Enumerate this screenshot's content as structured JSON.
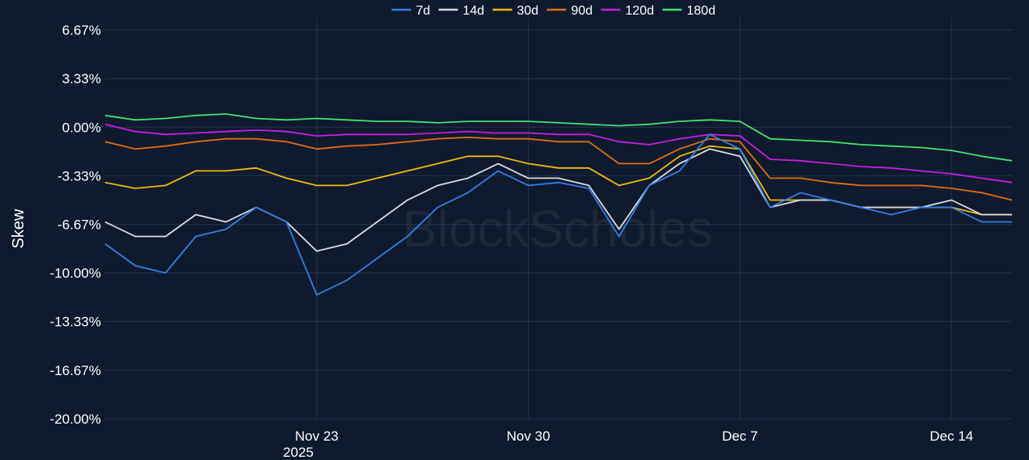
{
  "chart_data": {
    "type": "line",
    "watermark": "BlockScholes",
    "ylabel": "Skew",
    "xlabel": "",
    "year_label": "2025",
    "ylim": [
      -20.0,
      7.5
    ],
    "y_ticks": [
      6.67,
      3.33,
      0.0,
      -3.33,
      -6.67,
      -10.0,
      -13.33,
      -16.67,
      -20.0
    ],
    "y_tick_labels": [
      "6.67%",
      "3.33%",
      "0.00%",
      "-3.33%",
      "-6.67%",
      "-10.00%",
      "-13.33%",
      "-16.67%",
      "-20.00%"
    ],
    "x_range": [
      "2025-11-16",
      "2025-12-16"
    ],
    "x_ticks": [
      "2025-11-23",
      "2025-11-30",
      "2025-12-07",
      "2025-12-14"
    ],
    "x_tick_labels": [
      "Nov 23",
      "Nov 30",
      "Dec 7",
      "Dec 14"
    ],
    "grid": true,
    "legend_position": "top-center",
    "x": [
      "2025-11-16",
      "2025-11-17",
      "2025-11-18",
      "2025-11-19",
      "2025-11-20",
      "2025-11-21",
      "2025-11-22",
      "2025-11-23",
      "2025-11-24",
      "2025-11-25",
      "2025-11-26",
      "2025-11-27",
      "2025-11-28",
      "2025-11-29",
      "2025-11-30",
      "2025-12-01",
      "2025-12-02",
      "2025-12-03",
      "2025-12-04",
      "2025-12-05",
      "2025-12-06",
      "2025-12-07",
      "2025-12-08",
      "2025-12-09",
      "2025-12-10",
      "2025-12-11",
      "2025-12-12",
      "2025-12-13",
      "2025-12-14",
      "2025-12-15",
      "2025-12-16"
    ],
    "series": [
      {
        "name": "7d",
        "color": "#2f7fe6",
        "values": [
          -8.0,
          -9.5,
          -10.0,
          -7.5,
          -7.0,
          -5.5,
          -6.5,
          -11.5,
          -10.5,
          -9.0,
          -7.5,
          -5.5,
          -4.5,
          -3.0,
          -4.0,
          -3.8,
          -4.2,
          -7.5,
          -4.0,
          -3.0,
          -0.5,
          -1.5,
          -5.5,
          -4.5,
          -5.0,
          -5.5,
          -6.0,
          -5.5,
          -5.5,
          -6.5,
          -6.5
        ]
      },
      {
        "name": "14d",
        "color": "#d9dbe0",
        "values": [
          -6.5,
          -7.5,
          -7.5,
          -6.0,
          -6.5,
          -5.5,
          -6.5,
          -8.5,
          -8.0,
          -6.5,
          -5.0,
          -4.0,
          -3.5,
          -2.5,
          -3.5,
          -3.5,
          -4.0,
          -7.0,
          -4.0,
          -2.5,
          -1.5,
          -2.0,
          -5.5,
          -5.0,
          -5.0,
          -5.5,
          -5.5,
          -5.5,
          -5.0,
          -6.0,
          -6.0
        ]
      },
      {
        "name": "30d",
        "color": "#f0b90b",
        "values": [
          -3.8,
          -4.2,
          -4.0,
          -3.0,
          -3.0,
          -2.8,
          -3.5,
          -4.0,
          -4.0,
          -3.5,
          -3.0,
          -2.5,
          -2.0,
          -2.0,
          -2.5,
          -2.8,
          -2.8,
          -4.0,
          -3.5,
          -2.0,
          -1.3,
          -1.5,
          -5.0,
          -5.0,
          -5.0,
          -5.5,
          -5.5,
          -5.5,
          -5.5,
          -6.0,
          -6.0
        ]
      },
      {
        "name": "90d",
        "color": "#e06d12",
        "values": [
          -1.0,
          -1.5,
          -1.3,
          -1.0,
          -0.8,
          -0.8,
          -1.0,
          -1.5,
          -1.3,
          -1.2,
          -1.0,
          -0.8,
          -0.7,
          -0.8,
          -0.8,
          -1.0,
          -1.0,
          -2.5,
          -2.5,
          -1.5,
          -0.8,
          -1.0,
          -3.5,
          -3.5,
          -3.8,
          -4.0,
          -4.0,
          -4.0,
          -4.2,
          -4.5,
          -5.0
        ]
      },
      {
        "name": "120d",
        "color": "#c21fe0",
        "values": [
          0.2,
          -0.3,
          -0.5,
          -0.4,
          -0.3,
          -0.2,
          -0.3,
          -0.6,
          -0.5,
          -0.5,
          -0.5,
          -0.4,
          -0.3,
          -0.4,
          -0.4,
          -0.5,
          -0.5,
          -1.0,
          -1.2,
          -0.8,
          -0.5,
          -0.6,
          -2.2,
          -2.3,
          -2.5,
          -2.7,
          -2.8,
          -3.0,
          -3.2,
          -3.5,
          -3.8
        ]
      },
      {
        "name": "180d",
        "color": "#3fe36b",
        "values": [
          0.8,
          0.5,
          0.6,
          0.8,
          0.9,
          0.6,
          0.5,
          0.6,
          0.5,
          0.4,
          0.4,
          0.3,
          0.4,
          0.4,
          0.4,
          0.3,
          0.2,
          0.1,
          0.2,
          0.4,
          0.5,
          0.4,
          -0.8,
          -0.9,
          -1.0,
          -1.2,
          -1.3,
          -1.4,
          -1.6,
          -2.0,
          -2.3
        ]
      }
    ]
  }
}
